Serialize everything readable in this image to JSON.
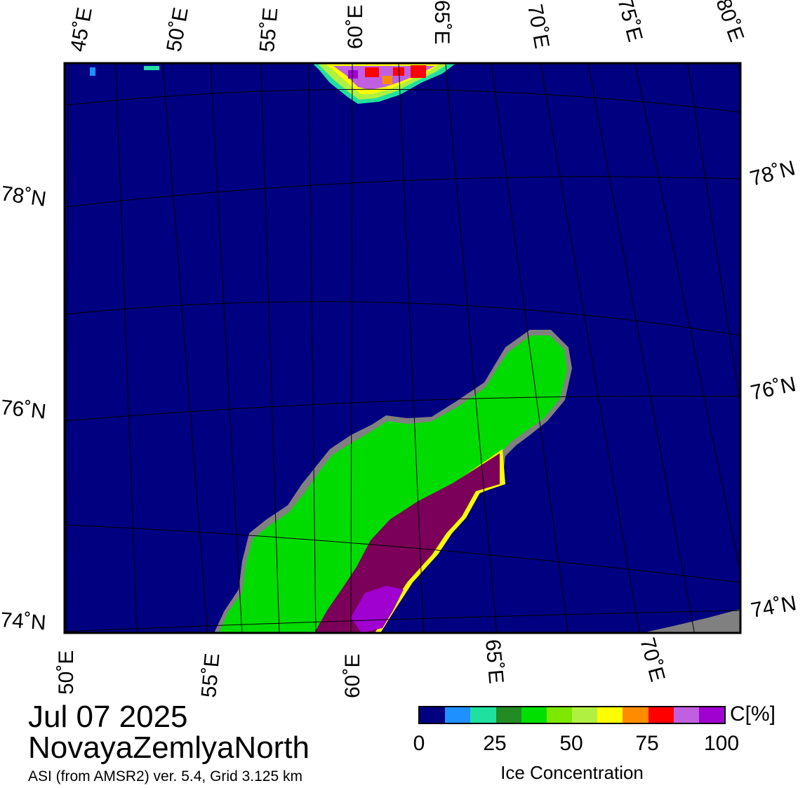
{
  "top_lon_labels": [
    "45˚E",
    "50˚E",
    "55˚E",
    "60˚E",
    "65˚E",
    "70˚E",
    "75˚E",
    "80˚E"
  ],
  "bottom_lon_labels": [
    "50˚E",
    "55˚E",
    "60˚E",
    "65˚E",
    "70˚E"
  ],
  "left_lat_labels": [
    "78˚N",
    "76˚N",
    "74˚N"
  ],
  "right_lat_labels": [
    "78˚N",
    "76˚N",
    "74˚N"
  ],
  "date": "Jul 07 2025",
  "region": "NovayaZemlyaNorth",
  "product": "ASI (from AMSR2) ver. 5.4,  Grid 3.125 km",
  "colorbar": {
    "unit": "C[%]",
    "title": "Ice Concentration",
    "ticks": [
      "0",
      "25",
      "50",
      "75",
      "100"
    ],
    "colors": [
      "#000080",
      "#1e90ff",
      "#20e0a0",
      "#228b22",
      "#00e000",
      "#7ce800",
      "#b0f040",
      "#ffff00",
      "#ff8c00",
      "#ff0000",
      "#c060e0",
      "#a000d0"
    ]
  },
  "colors": {
    "water": "#000080",
    "land": "#00dc00",
    "coast": "#808080",
    "land_ice": "#7a005a"
  }
}
